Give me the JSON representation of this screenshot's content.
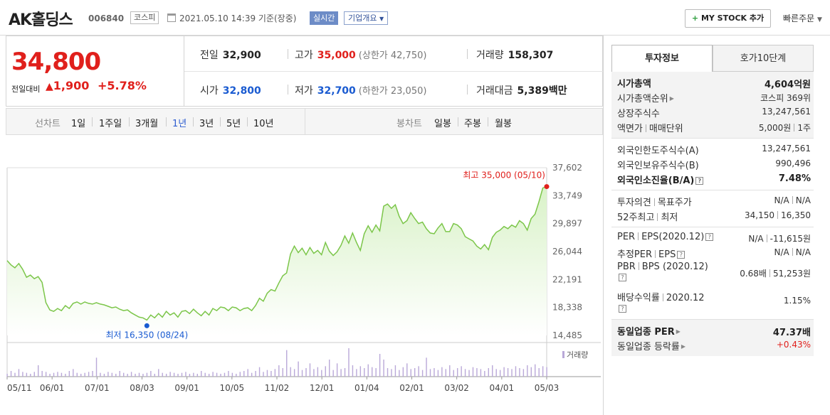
{
  "header": {
    "stock_name": "AK홀딩스",
    "stock_code": "006840",
    "market": "코스피",
    "datetime": "2021.05.10 14:39 기준(장중)",
    "realtime_label": "실시간",
    "company_label": "기업개요",
    "mystock_label": "MY STOCK 추가",
    "quick_label": "빠른주문"
  },
  "price": {
    "current": "34,800",
    "change_label": "전일대비",
    "change_value": "1,900",
    "change_pct": "+5.78%",
    "up_color": "#e0201c",
    "down_color": "#1a5bd1"
  },
  "info": {
    "prev_close_label": "전일",
    "prev_close": "32,900",
    "high_label": "고가",
    "high": "35,000",
    "upper_limit": "(상한가 42,750)",
    "volume_label": "거래량",
    "volume": "158,307",
    "open_label": "시가",
    "open": "32,800",
    "low_label": "저가",
    "low": "32,700",
    "lower_limit": "(하한가 23,050)",
    "amount_label": "거래대금",
    "amount": "5,389",
    "amount_unit": "백만"
  },
  "period_bar": {
    "line_chart_label": "선차트",
    "line_periods": [
      "1일",
      "1주일",
      "3개월",
      "1년",
      "3년",
      "5년",
      "10년"
    ],
    "active_period": "1년",
    "candle_label": "봉차트",
    "candle_periods": [
      "일봉",
      "주봉",
      "월봉"
    ]
  },
  "chart_data": {
    "type": "area",
    "x_ticks": [
      "05/11",
      "06/01",
      "07/01",
      "08/03",
      "09/01",
      "10/05",
      "11/02",
      "12/01",
      "01/04",
      "02/01",
      "03/02",
      "04/01",
      "05/03"
    ],
    "y_ticks": [
      "37,602",
      "33,749",
      "29,897",
      "26,044",
      "22,191",
      "18,338",
      "14,485"
    ],
    "ylim": [
      14485,
      37602
    ],
    "high_annotation": "최고 35,000 (05/10)",
    "low_annotation": "최저 16,350 (08/24)",
    "volume_label": "거래량",
    "line_color": "#7cc64a",
    "fill_color": "#d9f2c8",
    "volume_color": "#b9a8d8",
    "values": [
      24800,
      24200,
      23800,
      24400,
      23600,
      22500,
      22800,
      22300,
      22600,
      21800,
      19000,
      18000,
      17800,
      18200,
      17900,
      18600,
      18200,
      18900,
      19100,
      18800,
      19100,
      18900,
      18800,
      19000,
      18800,
      18700,
      18500,
      18300,
      18400,
      18100,
      17900,
      18000,
      17600,
      17300,
      17000,
      16900,
      16600,
      17300,
      16900,
      17500,
      17000,
      17800,
      17300,
      17600,
      17000,
      17800,
      17900,
      17500,
      18100,
      17600,
      17200,
      17800,
      17300,
      18200,
      17900,
      18400,
      18300,
      17900,
      18400,
      18300,
      17900,
      18200,
      18300,
      17900,
      18600,
      19600,
      19200,
      20300,
      20800,
      20600,
      21700,
      22700,
      23100,
      25700,
      26800,
      25900,
      26500,
      25600,
      26600,
      25800,
      26200,
      25600,
      27300,
      26100,
      25500,
      26000,
      26900,
      28200,
      27200,
      28600,
      27300,
      26200,
      28500,
      29600,
      28700,
      29700,
      28900,
      32300,
      32600,
      32000,
      32500,
      30900,
      29900,
      30300,
      31400,
      30600,
      29900,
      30100,
      29200,
      28600,
      28500,
      29300,
      29900,
      28800,
      28800,
      29900,
      29700,
      29200,
      28100,
      27800,
      27500,
      26800,
      26400,
      27000,
      26300,
      28000,
      28700,
      29000,
      29500,
      29200,
      29700,
      29400,
      30300,
      29900,
      29000,
      30600,
      31200,
      32900,
      34800,
      35000
    ],
    "volumes": [
      3,
      6,
      4,
      8,
      5,
      4,
      3,
      5,
      12,
      6,
      5,
      3,
      4,
      5,
      4,
      3,
      6,
      8,
      4,
      3,
      4,
      5,
      6,
      20,
      4,
      3,
      5,
      4,
      3,
      6,
      4,
      3,
      5,
      3,
      4,
      3,
      4,
      6,
      3,
      8,
      4,
      3,
      5,
      4,
      3,
      4,
      5,
      3,
      4,
      3,
      6,
      4,
      3,
      5,
      4,
      3,
      4,
      6,
      4,
      3,
      5,
      6,
      8,
      4,
      6,
      10,
      5,
      7,
      6,
      8,
      12,
      9,
      28,
      10,
      8,
      16,
      7,
      9,
      14,
      8,
      10,
      7,
      11,
      18,
      7,
      14,
      8,
      9,
      30,
      12,
      8,
      11,
      9,
      13,
      10,
      9,
      24,
      18,
      9,
      8,
      12,
      7,
      10,
      14,
      8,
      9,
      11,
      7,
      20,
      8,
      9,
      7,
      10,
      8,
      12,
      7,
      9,
      11,
      8,
      7,
      10,
      9,
      8,
      6,
      9,
      12,
      8,
      7,
      10,
      9,
      8,
      11,
      9,
      8,
      12,
      10,
      13,
      9,
      11,
      10
    ]
  },
  "invest": {
    "tab_info": "투자정보",
    "tab_hoga": "호가10단계",
    "market_cap_label": "시가총액",
    "market_cap": "4,604억원",
    "cap_rank_label": "시가총액순위",
    "cap_rank": "코스피 369위",
    "shares_label": "상장주식수",
    "shares": "13,247,561",
    "face_label": "액면가",
    "unit_label": "매매단위",
    "face_value": "5,000원",
    "unit_value": "1주",
    "foreign_limit_label": "외국인한도주식수(A)",
    "foreign_limit": "13,247,561",
    "foreign_hold_label": "외국인보유주식수(B)",
    "foreign_hold": "990,496",
    "foreign_ratio_label": "외국인소진율(B/A)",
    "foreign_ratio": "7.48%",
    "opinion_label": "투자의견",
    "target_label": "목표주가",
    "opinion": "N/A",
    "target": "N/A",
    "w52_label": "52주최고",
    "w52_low_label": "최저",
    "w52_high": "34,150",
    "w52_low": "16,350",
    "per_label": "PER",
    "eps_label": "EPS(2020.12)",
    "per": "N/A",
    "eps": "-11,615원",
    "est_per_label": "추정PER",
    "est_eps_label": "EPS",
    "est_per": "N/A",
    "est_eps": "N/A",
    "pbr_label": "PBR",
    "bps_label": "BPS (2020.12)",
    "pbr": "0.68배",
    "bps": "51,253원",
    "div_label": "배당수익률",
    "div_year": "2020.12",
    "div": "1.15%",
    "sector_per_label": "동일업종 PER",
    "sector_per": "47.37배",
    "sector_chg_label": "동일업종 등락률",
    "sector_chg": "+0.43%"
  }
}
